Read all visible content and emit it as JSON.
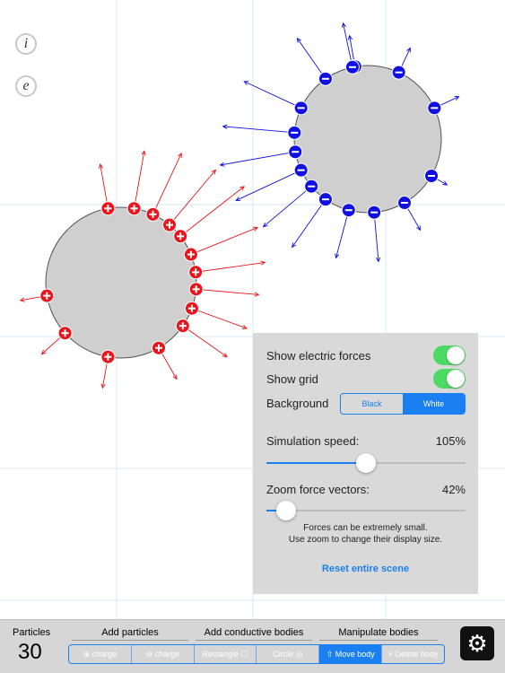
{
  "side_buttons": {
    "info": "i",
    "electric": "e"
  },
  "settings": {
    "show_forces_label": "Show electric forces",
    "show_grid_label": "Show grid",
    "background_label": "Background",
    "background_options": [
      "Black",
      "White"
    ],
    "background_selected": "White",
    "speed_label": "Simulation speed:",
    "speed_value": "105%",
    "speed_fraction": 0.5,
    "zoom_label": "Zoom force vectors:",
    "zoom_value": "42%",
    "zoom_fraction": 0.1,
    "note_line1": "Forces can be extremely small.",
    "note_line2": "Use zoom to change their display size.",
    "reset_label": "Reset entire scene"
  },
  "toolbar": {
    "particles_label": "Particles",
    "particles_count": "30",
    "group_add_particles": "Add particles",
    "group_add_bodies": "Add conductive bodies",
    "group_manipulate": "Manipulate bodies",
    "pos_charge": "⊕ charge",
    "neg_charge": "⊖ charge",
    "rectangle": "Rectangle ☐",
    "circle": "Circle ◎",
    "move_body": "⇧ Move body",
    "delete_body": "× Delete body"
  },
  "colors": {
    "positive": "#e8151c",
    "negative": "#1010e0",
    "body_fill": "#cfcfcf",
    "accent": "#1a7ff0",
    "toggle_on": "#4cd964"
  },
  "icons": {
    "settings": "gear-icon"
  }
}
